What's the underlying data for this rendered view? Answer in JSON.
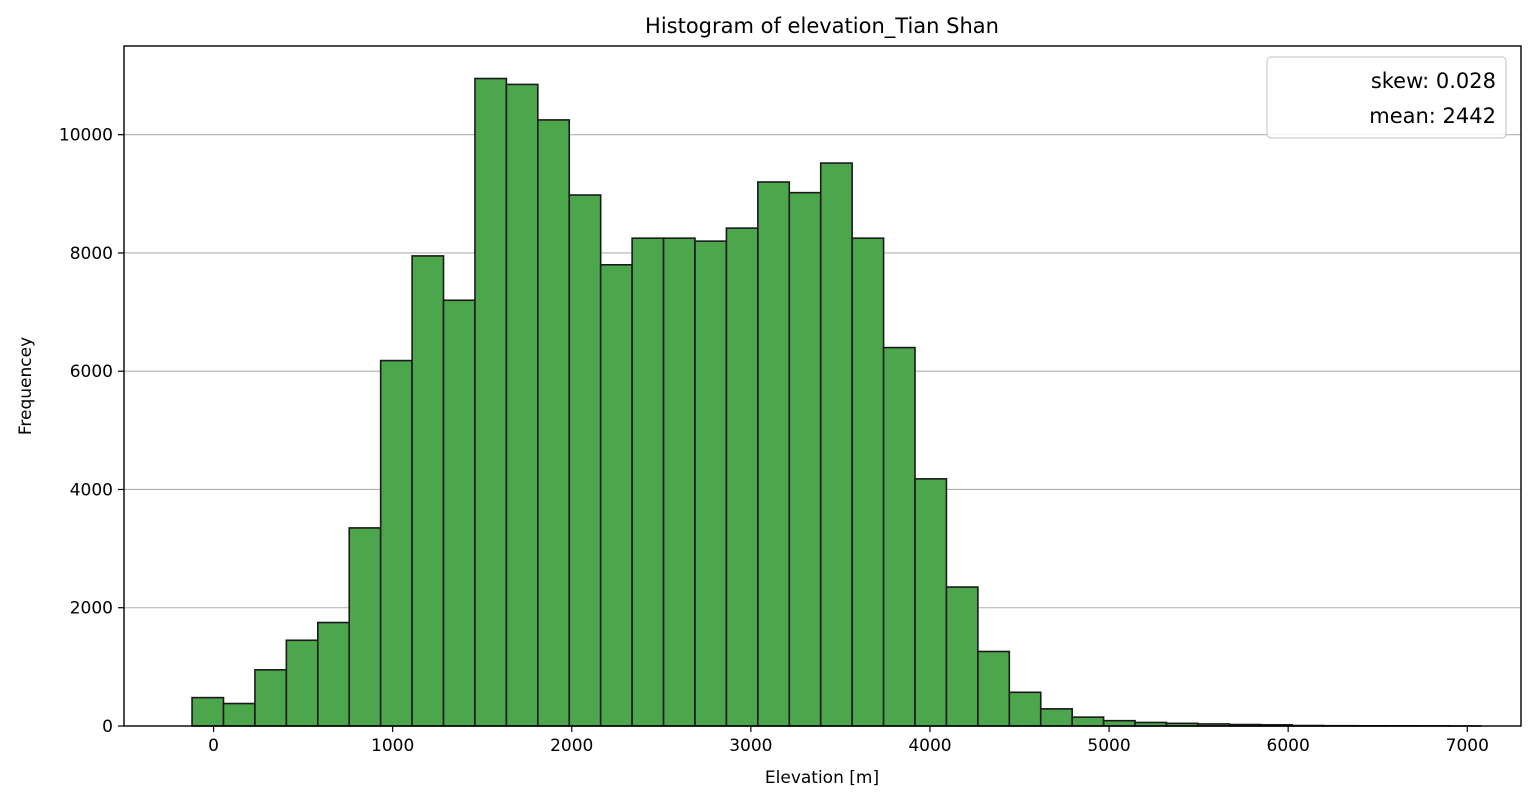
{
  "chart_data": {
    "type": "bar",
    "title": "Histogram of elevation_Tian Shan",
    "xlabel": "Elevation [m]",
    "ylabel": "Frequencey",
    "xlim": [
      -500,
      7300
    ],
    "ylim": [
      0,
      11500
    ],
    "xticks": [
      0,
      1000,
      2000,
      3000,
      4000,
      5000,
      6000,
      7000
    ],
    "yticks": [
      0,
      2000,
      4000,
      6000,
      8000,
      10000
    ],
    "grid": "y",
    "bar_color": "#4ca64c",
    "edge_color": "#1a1a1a",
    "bin_width": 175.5,
    "bin_start": -120,
    "values": [
      480,
      380,
      950,
      1450,
      1750,
      3350,
      6180,
      7950,
      7200,
      10950,
      10850,
      10250,
      8980,
      7800,
      8250,
      8250,
      8200,
      8420,
      9200,
      9020,
      9520,
      8250,
      6400,
      4180,
      2350,
      1260,
      570,
      290,
      150,
      90,
      60,
      45,
      35,
      25,
      20,
      8,
      5,
      4,
      3,
      2,
      1
    ],
    "legend": {
      "position": "top-right",
      "entries": [
        "skew: 0.028",
        "mean: 2442"
      ]
    }
  }
}
